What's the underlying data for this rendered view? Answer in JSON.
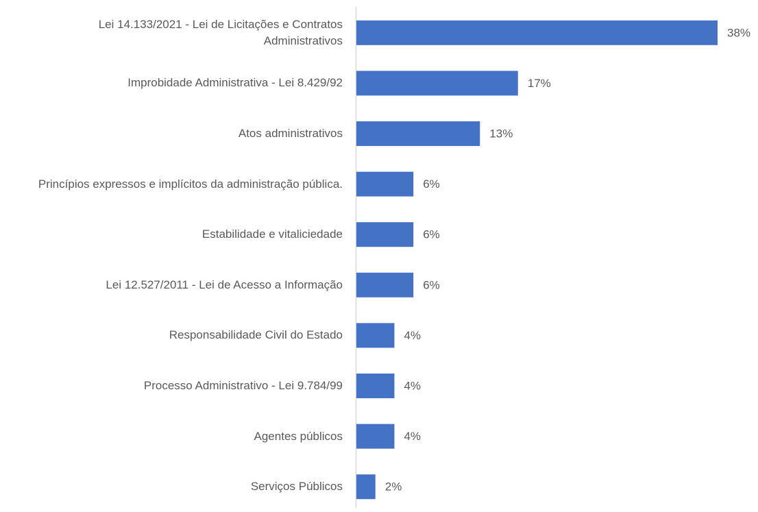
{
  "chart_data": {
    "type": "bar",
    "orientation": "horizontal",
    "color": "#4472c4",
    "categories": [
      "Lei 14.133/2021 - Lei de Licitações e Contratos Administrativos",
      "Improbidade Administrativa - Lei 8.429/92",
      "Atos administrativos",
      "Princípios expressos e implícitos da administração pública.",
      "Estabilidade e vitaliciedade",
      "Lei 12.527/2011 - Lei de Acesso a Informação",
      "Responsabilidade Civil do Estado",
      "Processo Administrativo - Lei 9.784/99",
      "Agentes públicos",
      "Serviços Públicos"
    ],
    "values": [
      38,
      17,
      13,
      6,
      6,
      6,
      4,
      4,
      4,
      2
    ],
    "value_labels": [
      "38%",
      "17%",
      "13%",
      "6%",
      "6%",
      "6%",
      "4%",
      "4%",
      "4%",
      "2%"
    ]
  }
}
